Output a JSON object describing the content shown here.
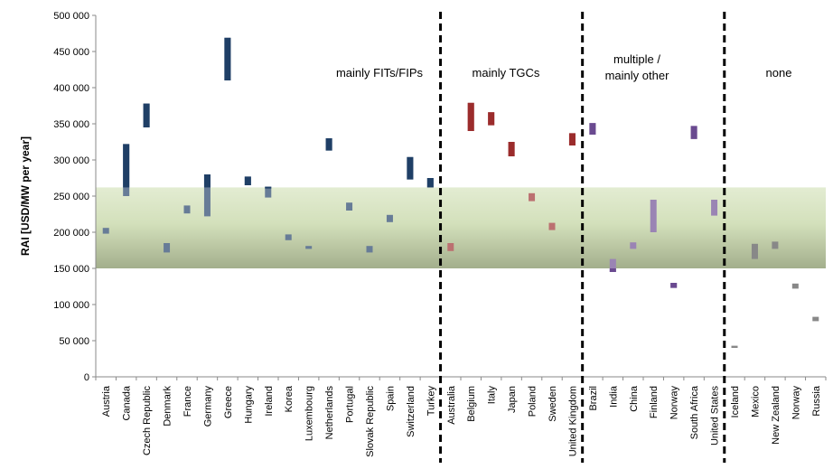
{
  "chart_data": {
    "type": "bar",
    "ylabel": "RAI [USD/MW per year]",
    "ylim": [
      0,
      500000
    ],
    "yticks": [
      "0",
      "50 000",
      "100 000",
      "150 000",
      "200 000",
      "250 000",
      "300 000",
      "350 000",
      "400 000",
      "450 000",
      "500 000"
    ],
    "band": {
      "low": 150000,
      "high": 262000
    },
    "groups": [
      {
        "label": "mainly FITs/FIPs",
        "color": "#1f3f66"
      },
      {
        "label": "mainly TGCs",
        "color": "#9b2c2c"
      },
      {
        "label": "multiple /",
        "label2": "mainly other",
        "color": "#6a4a90"
      },
      {
        "label": "none",
        "color": "#888888"
      }
    ],
    "categories": [
      "Austria",
      "Canada",
      "Czech Republic",
      "Denmark",
      "France",
      "Germany",
      "Greece",
      "Hungary",
      "Ireland",
      "Korea",
      "Luxembourg",
      "Netherlands",
      "Portugal",
      "Slovak Republic",
      "Spain",
      "Switzerland",
      "Turkey",
      "Australia",
      "Belgium",
      "Italy",
      "Japan",
      "Poland",
      "Sweden",
      "United Kingdom",
      "Brazil",
      "India",
      "China",
      "Finland",
      "Norway",
      "South Africa",
      "United States",
      "Iceland",
      "Mexico",
      "New Zealand",
      "Norway",
      "Russia"
    ],
    "category_groups": [
      0,
      0,
      0,
      0,
      0,
      0,
      0,
      0,
      0,
      0,
      0,
      0,
      0,
      0,
      0,
      0,
      0,
      1,
      1,
      1,
      1,
      1,
      1,
      1,
      2,
      2,
      2,
      2,
      2,
      2,
      2,
      3,
      3,
      3,
      3,
      3
    ],
    "ranges": [
      [
        198000,
        206000
      ],
      [
        250000,
        322000
      ],
      [
        345000,
        378000
      ],
      [
        172000,
        185000
      ],
      [
        226000,
        237000
      ],
      [
        222000,
        280000
      ],
      [
        410000,
        469000
      ],
      [
        265000,
        277000
      ],
      [
        248000,
        263000
      ],
      [
        189000,
        197000
      ],
      [
        177000,
        181000
      ],
      [
        313000,
        330000
      ],
      [
        230000,
        241000
      ],
      [
        172000,
        181000
      ],
      [
        214000,
        224000
      ],
      [
        273000,
        304000
      ],
      [
        262000,
        275000
      ],
      [
        174000,
        185000
      ],
      [
        340000,
        379000
      ],
      [
        348000,
        366000
      ],
      [
        305000,
        325000
      ],
      [
        243000,
        254000
      ],
      [
        203000,
        213000
      ],
      [
        320000,
        337000
      ],
      [
        335000,
        351000
      ],
      [
        145000,
        163000
      ],
      [
        177000,
        186000
      ],
      [
        200000,
        245000
      ],
      [
        123000,
        130000
      ],
      [
        329000,
        347000
      ],
      [
        223000,
        245000
      ],
      [
        40000,
        43000
      ],
      [
        163000,
        184000
      ],
      [
        177000,
        187000
      ],
      [
        122000,
        129000
      ],
      [
        77000,
        83000
      ]
    ]
  }
}
